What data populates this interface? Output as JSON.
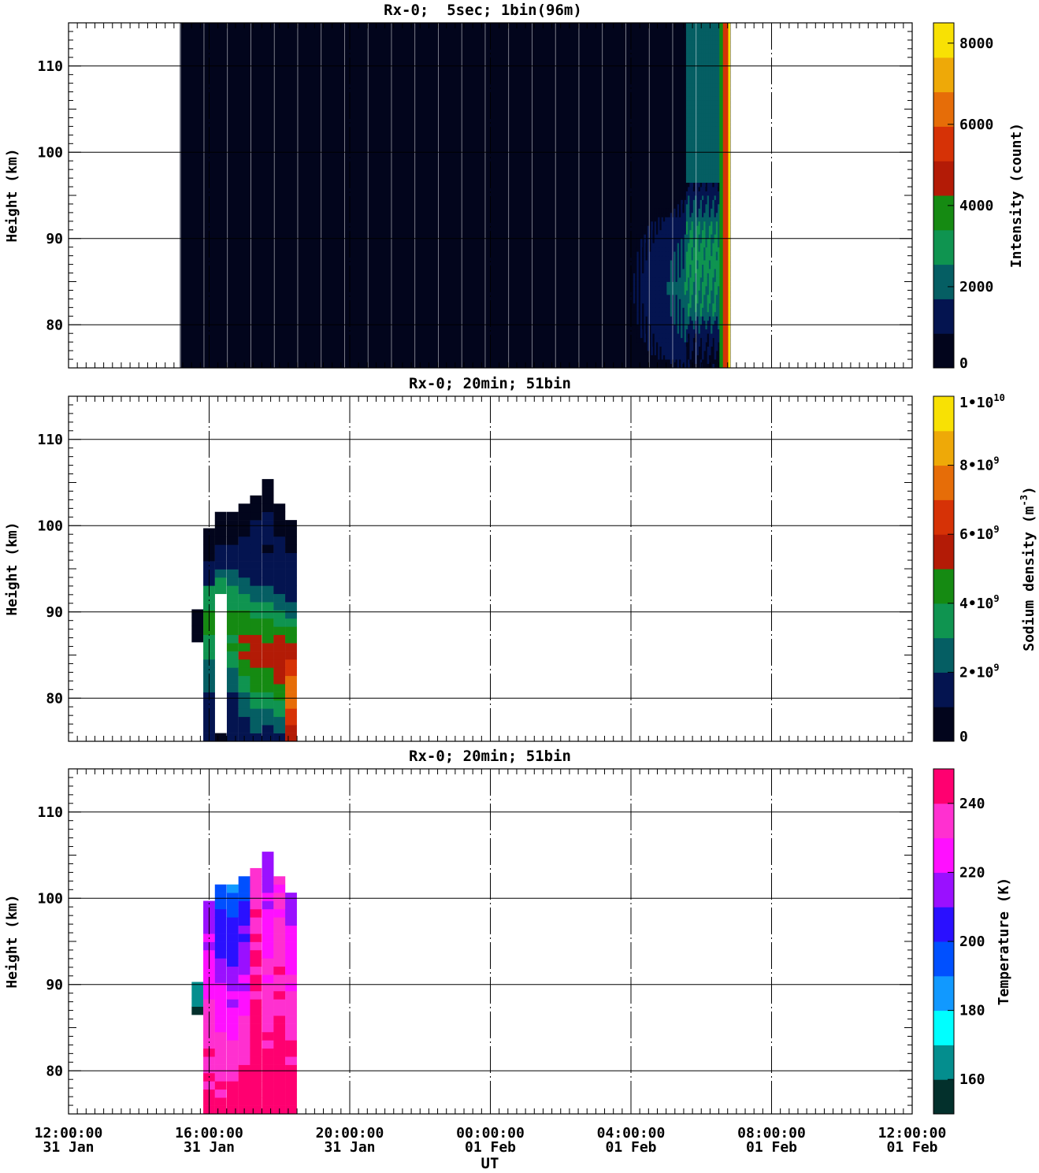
{
  "x_ticks": [
    {
      "time": "12:00:00",
      "date": "31 Jan"
    },
    {
      "time": "16:00:00",
      "date": "31 Jan"
    },
    {
      "time": "20:00:00",
      "date": "31 Jan"
    },
    {
      "time": "00:00:00",
      "date": "01 Feb"
    },
    {
      "time": "04:00:00",
      "date": "01 Feb"
    },
    {
      "time": "08:00:00",
      "date": "01 Feb"
    },
    {
      "time": "12:00:00",
      "date": "01 Feb"
    }
  ],
  "x_label": "UT",
  "chart_data": [
    {
      "type": "heatmap",
      "title": "Rx-0;  5sec; 1bin(96m)",
      "ylabel": "Height (km)",
      "xlim": [
        "2015-01-31T12:00:00",
        "2015-02-01T12:00:00"
      ],
      "x_hours_range": [
        0,
        24
      ],
      "ylim": [
        75,
        115
      ],
      "y_ticks": [
        80,
        90,
        100,
        110
      ],
      "grid": true,
      "colorbar": {
        "label": "Intensity (count)",
        "tick_labels": [
          "0",
          "2000",
          "4000",
          "6000",
          "8000"
        ],
        "tick_values": [
          0,
          2000,
          4000,
          6000,
          8000
        ],
        "range": [
          0,
          8500
        ],
        "colors": [
          "#02051c",
          "#041450",
          "#055e63",
          "#0f9450",
          "#158a12",
          "#b31b06",
          "#d63206",
          "#e66d08",
          "#eea908",
          "#f8e104"
        ]
      },
      "data": {
        "description": "Continuous profiles from 15:10 UT to 06:50 UT; near-zero background, layer (≈78–95 km, 2000–4500 counts) from ~03:10, saturating strip near 06:30–06:45",
        "time_start": "15:10",
        "time_end": "06:50",
        "layer_peak_km": 82,
        "max_count": 8000
      }
    },
    {
      "type": "heatmap",
      "title": "Rx-0; 20min; 51bin",
      "ylabel": "Height (km)",
      "ylim": [
        75,
        115
      ],
      "y_ticks": [
        80,
        90,
        100,
        110
      ],
      "grid": true,
      "colorbar": {
        "label": "Sodium density (m^-3)",
        "label_main": "Sodium density (m",
        "label_exp": "-3",
        "tick_labels": [
          {
            "m": "0",
            "e": ""
          },
          {
            "m": "2•10",
            "e": "9"
          },
          {
            "m": "4•10",
            "e": "9"
          },
          {
            "m": "6•10",
            "e": "9"
          },
          {
            "m": "8•10",
            "e": "9"
          },
          {
            "m": "1•10",
            "e": "10"
          }
        ],
        "tick_values": [
          0,
          2000000000.0,
          4000000000.0,
          6000000000.0,
          8000000000.0,
          10000000000.0
        ],
        "range": [
          0,
          10000000000.0
        ],
        "colors": [
          "#02051c",
          "#041450",
          "#055e63",
          "#0f9450",
          "#158a12",
          "#b31b06",
          "#d63206",
          "#e66d08",
          "#eea908",
          "#f8e104"
        ]
      },
      "columns": [
        {
          "t": 3.67,
          "top": 89.5,
          "bottom": 86.5,
          "p": 88,
          "v": [
            3800000000.0,
            1000000000.0
          ],
          "l": 0.5
        },
        {
          "t": 4.0,
          "top": 98.8,
          "bottom": 75.0,
          "p": 89,
          "v": [
            4200000000.0,
            1000000000.0
          ],
          "l": 1.0
        },
        {
          "t": 4.33,
          "top": 100.7,
          "bottom": 75.0,
          "p": 89,
          "v": [
            4300000000.0,
            1000000000.0
          ],
          "l": 1.2
        },
        {
          "t": 4.67,
          "top": 100.7,
          "bottom": 75.0,
          "p": 88,
          "v": [
            4200000000.0,
            1000000000.0
          ],
          "l": 1.0
        },
        {
          "t": 5.0,
          "top": 102.0,
          "bottom": 75.0,
          "p": 86,
          "v": [
            5000000000.0,
            1000000000.0
          ],
          "l": 1.0
        },
        {
          "t": 5.33,
          "top": 103.5,
          "bottom": 75.0,
          "p": 85,
          "v": [
            5400000000.0,
            1000000000.0
          ],
          "l": 1.0
        },
        {
          "t": 5.67,
          "top": 104.5,
          "bottom": 75.0,
          "p": 85,
          "v": [
            5300000000.0,
            1000000000.0
          ],
          "l": 1.0
        },
        {
          "t": 6.0,
          "top": 102.0,
          "bottom": 75.0,
          "p": 84,
          "v": [
            5600000000.0,
            1000000000.0
          ],
          "l": 1.0
        },
        {
          "t": 6.33,
          "top": 100.0,
          "bottom": 75.0,
          "p": 81,
          "v": [
            7500000000.0,
            1000000000.0
          ],
          "l": 0.8
        }
      ],
      "gaps": [
        {
          "t": 4.33,
          "from": 76.0,
          "to": 92.0
        }
      ]
    },
    {
      "type": "heatmap",
      "title": "Rx-0; 20min; 51bin",
      "ylabel": "Height (km)",
      "ylim": [
        75,
        115
      ],
      "y_ticks": [
        80,
        90,
        100,
        110
      ],
      "grid": true,
      "colorbar": {
        "label": "Temperature (K)",
        "tick_labels": [
          "160",
          "180",
          "200",
          "220",
          "240"
        ],
        "tick_values": [
          160,
          180,
          200,
          220,
          240
        ],
        "range": [
          150,
          250
        ],
        "colors": [
          "#03302c",
          "#048e8e",
          "#00ffff",
          "#1199ff",
          "#0050ff",
          "#2a10ff",
          "#9a10ff",
          "#ff10ff",
          "#ff30d0",
          "#ff0070"
        ]
      },
      "columns": [
        {
          "t": 3.67,
          "top": 89.5,
          "bottom": 86.5,
          "temp_top": 170,
          "temp_bottom": 160
        },
        {
          "t": 4.0,
          "top": 98.8,
          "bottom": 75.0,
          "temp_top": 215,
          "temp_bottom": 245
        },
        {
          "t": 4.33,
          "top": 100.7,
          "bottom": 75.0,
          "temp_top": 195,
          "temp_bottom": 245
        },
        {
          "t": 4.67,
          "top": 100.7,
          "bottom": 75.0,
          "temp_top": 190,
          "temp_bottom": 245
        },
        {
          "t": 5.0,
          "top": 102.0,
          "bottom": 75.0,
          "temp_top": 195,
          "temp_bottom": 248
        },
        {
          "t": 5.33,
          "top": 103.5,
          "bottom": 75.0,
          "temp_top": 235,
          "temp_bottom": 248
        },
        {
          "t": 5.67,
          "top": 104.5,
          "bottom": 75.0,
          "temp_top": 215,
          "temp_bottom": 248
        },
        {
          "t": 6.0,
          "top": 102.0,
          "bottom": 75.0,
          "temp_top": 230,
          "temp_bottom": 248
        },
        {
          "t": 6.33,
          "top": 100.0,
          "bottom": 75.0,
          "temp_top": 215,
          "temp_bottom": 248
        }
      ]
    }
  ]
}
